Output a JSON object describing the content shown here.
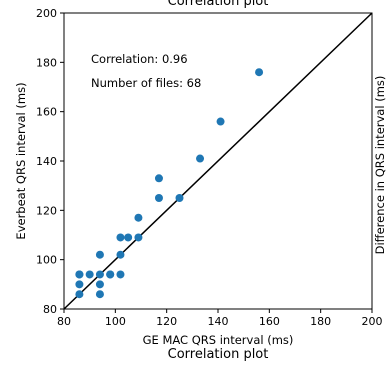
{
  "chart_data": {
    "type": "scatter",
    "title_top": "Correlation plot",
    "title": "Correlation plot",
    "xlabel": "GE MAC QRS interval (ms)",
    "ylabel": "Everbeat QRS interval (ms)",
    "ylabel_right": "Difference in QRS interval (ms)",
    "xlim": [
      80,
      200
    ],
    "ylim": [
      80,
      200
    ],
    "xticks": [
      "80",
      "100",
      "120",
      "140",
      "160",
      "180",
      "200"
    ],
    "yticks": [
      "80",
      "100",
      "120",
      "140",
      "160",
      "180",
      "200"
    ],
    "identity_line": true,
    "grid": false,
    "marker_color": "#1f77b4",
    "line_color": "#000000",
    "annotations": {
      "correlation": "Correlation: 0.96",
      "num_files": "Number of files: 68"
    },
    "series": [
      {
        "x": [
          86,
          86,
          86,
          86,
          90,
          94,
          94,
          94,
          94,
          98,
          98,
          102,
          102,
          102,
          105,
          109,
          109,
          117,
          117,
          125,
          133,
          141,
          156
        ],
        "y": [
          86,
          90,
          94,
          94,
          94,
          86,
          90,
          94,
          102,
          94,
          94,
          94,
          102,
          109,
          109,
          109,
          117,
          125,
          133,
          125,
          141,
          156,
          176
        ]
      }
    ]
  }
}
